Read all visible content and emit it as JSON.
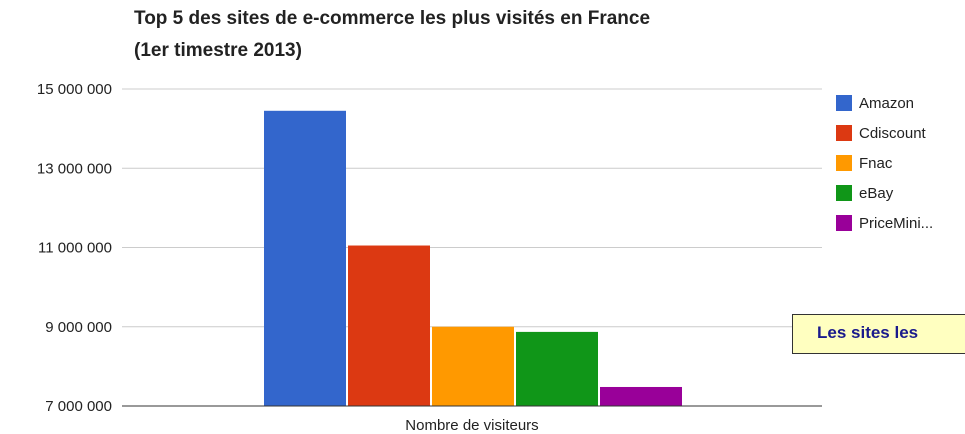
{
  "chart_data": {
    "type": "bar",
    "title_line1": "Top 5 des sites de e-commerce les plus visités en France",
    "title_line2": "(1er timestre 2013)",
    "xlabel": "Nombre de visiteurs",
    "ylabel": "",
    "ylim": [
      7000000,
      15000000
    ],
    "y_ticks": [
      7000000,
      9000000,
      11000000,
      13000000,
      15000000
    ],
    "y_tick_labels": [
      "7 000 000",
      "9 000 000",
      "11 000 000",
      "13 000 000",
      "15 000 000"
    ],
    "grid": true,
    "legend_position": "right",
    "series": [
      {
        "name": "Amazon",
        "legend_label": "Amazon",
        "value": 14450000,
        "color": "#3366cc"
      },
      {
        "name": "Cdiscount",
        "legend_label": "Cdiscount",
        "value": 11050000,
        "color": "#dc3912"
      },
      {
        "name": "Fnac",
        "legend_label": "Fnac",
        "value": 9000000,
        "color": "#ff9900"
      },
      {
        "name": "eBay",
        "legend_label": "eBay",
        "value": 8870000,
        "color": "#109618"
      },
      {
        "name": "PriceMini...",
        "legend_label": "PriceMini...",
        "value": 7480000,
        "color": "#990099"
      }
    ]
  },
  "overlay": {
    "text": "Les sites les"
  }
}
